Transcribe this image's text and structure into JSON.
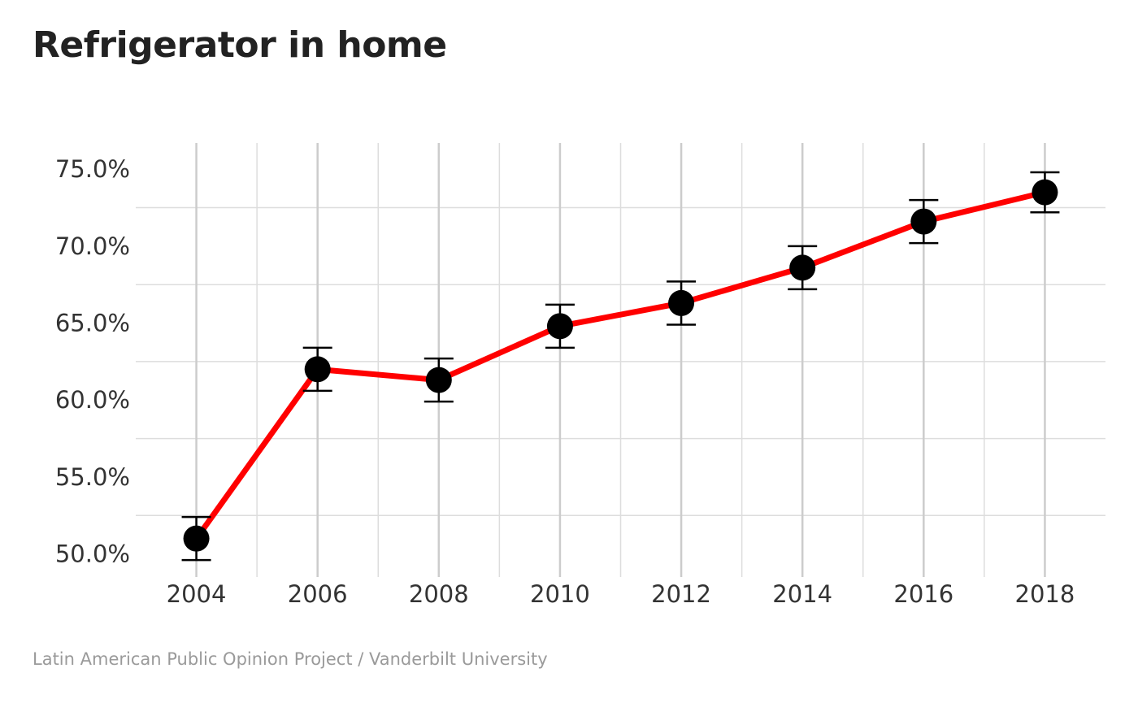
{
  "chart_data": {
    "type": "line",
    "title": "Refrigerator in home",
    "source": "Latin American Public Opinion Project / Vanderbilt University",
    "xlabel": "",
    "ylabel": "",
    "x": [
      2004,
      2006,
      2008,
      2010,
      2012,
      2014,
      2016,
      2018
    ],
    "x_ticks": [
      "2004",
      "2006",
      "2008",
      "2010",
      "2012",
      "2014",
      "2016",
      "2018"
    ],
    "xlim": [
      2003,
      2019
    ],
    "ylim": [
      48.5,
      76.7
    ],
    "y_ticks": [
      50,
      55,
      60,
      65,
      70,
      75
    ],
    "y_tick_labels": [
      "50.0%",
      "55.0%",
      "60.0%",
      "65.0%",
      "70.0%",
      "75.0%"
    ],
    "series": [
      {
        "values": [
          51.0,
          62.0,
          61.3,
          64.8,
          66.3,
          68.6,
          71.6,
          73.5
        ],
        "lower": [
          49.6,
          60.6,
          59.9,
          63.4,
          64.9,
          67.2,
          70.2,
          72.2
        ],
        "upper": [
          52.4,
          63.4,
          62.7,
          66.2,
          67.7,
          70.0,
          73.0,
          74.8
        ],
        "line_color": "#ff0000",
        "point_color": "#000000"
      }
    ],
    "grid": true,
    "legend": "none"
  }
}
